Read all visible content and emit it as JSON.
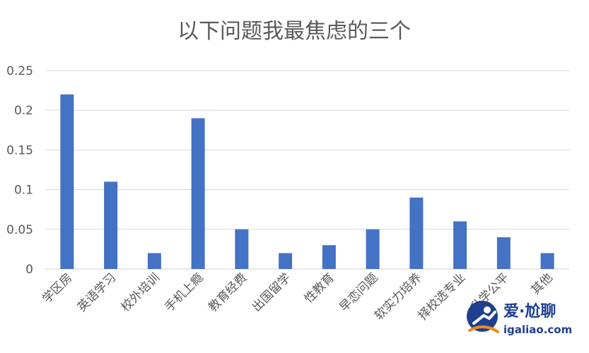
{
  "chart_data": {
    "type": "bar",
    "title": "以下问题我最焦虑的三个",
    "categories": [
      "学区房",
      "英语学习",
      "校外培训",
      "手机上瘾",
      "教育经费",
      "出国留学",
      "性教育",
      "早恋问题",
      "软实力培养",
      "择校选专业",
      "升学公平",
      "其他"
    ],
    "values": [
      0.22,
      0.11,
      0.02,
      0.19,
      0.05,
      0.02,
      0.03,
      0.05,
      0.09,
      0.06,
      0.04,
      0.02
    ],
    "ylim": [
      0,
      0.25
    ],
    "yticks": [
      "0",
      "0.05",
      "0.1",
      "0.15",
      "0.2",
      "0.25"
    ],
    "xlabel": "",
    "ylabel": "",
    "grid": true,
    "legend": "none",
    "bar_color": "#4472C4"
  },
  "watermark": {
    "name": "爱·尬聊",
    "url": "igaliao.com",
    "accent_color": "#f08a1c",
    "primary_color": "#1f3f8f"
  }
}
